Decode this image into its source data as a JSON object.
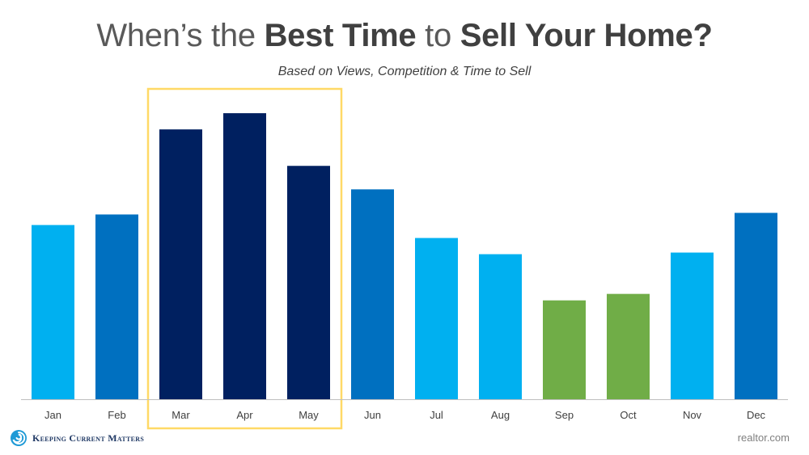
{
  "title": {
    "part1": "When’s the ",
    "bold1": "Best Time",
    "part2": " to ",
    "bold2": "Sell Your Home?"
  },
  "subtitle": "Based on Views, Competition & Time to Sell",
  "logo": {
    "text": "Keeping Current Matters",
    "icon": "swirl-icon",
    "color": "#1f9ad6"
  },
  "source": "realtor.com",
  "colors": {
    "light_blue": "#00b0f0",
    "mid_blue": "#0070c0",
    "navy": "#002060",
    "green": "#70ad47",
    "highlight_box": "#ffd966",
    "axis": "#bfbfbf",
    "tick_label": "#404040"
  },
  "chart_data": {
    "type": "bar",
    "title": "When’s the Best Time to Sell Your Home?",
    "subtitle": "Based on Views, Competition & Time to Sell",
    "categories": [
      "Jan",
      "Feb",
      "Mar",
      "Apr",
      "May",
      "Jun",
      "Jul",
      "Aug",
      "Sep",
      "Oct",
      "Nov",
      "Dec"
    ],
    "values": [
      215,
      228,
      333,
      353,
      288,
      259,
      199,
      179,
      122,
      130,
      181,
      230
    ],
    "bar_colors": [
      "#00b0f0",
      "#0070c0",
      "#002060",
      "#002060",
      "#002060",
      "#0070c0",
      "#00b0f0",
      "#00b0f0",
      "#70ad47",
      "#70ad47",
      "#00b0f0",
      "#0070c0"
    ],
    "highlight": {
      "categories": [
        "Mar",
        "Apr",
        "May"
      ],
      "color": "#ffd966"
    },
    "ylim": [
      0,
      380
    ],
    "xlabel": "",
    "ylabel": "",
    "grid": false,
    "legend": "none"
  }
}
